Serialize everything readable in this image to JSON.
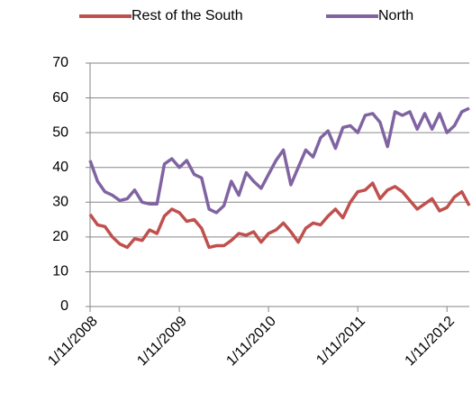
{
  "chart_data": {
    "type": "line",
    "categories": [
      "1/11/2008",
      null,
      null,
      null,
      null,
      null,
      null,
      null,
      null,
      null,
      null,
      null,
      "1/11/2009",
      null,
      null,
      null,
      null,
      null,
      null,
      null,
      null,
      null,
      null,
      null,
      "1/11/2010",
      null,
      null,
      null,
      null,
      null,
      null,
      null,
      null,
      null,
      null,
      null,
      "1/11/2011",
      null,
      null,
      null,
      null,
      null,
      null,
      null,
      null,
      null,
      null,
      null,
      "1/11/2012",
      null,
      null,
      null
    ],
    "series": [
      {
        "name": "Rest of the South",
        "color": "#c0504d",
        "values": [
          26.5,
          23.5,
          23,
          20,
          18,
          17,
          19.5,
          19,
          22,
          21,
          26,
          28,
          27,
          24.5,
          25,
          22.5,
          17,
          17.5,
          17.5,
          19,
          21,
          20.5,
          21.5,
          18.5,
          21,
          22,
          24,
          21.5,
          18.5,
          22.5,
          24,
          23.5,
          26,
          28,
          25.5,
          30,
          33,
          33.5,
          35.5,
          31,
          33.5,
          34.5,
          33,
          30.5,
          28,
          29.5,
          31,
          27.5,
          28.5,
          31.5,
          33,
          29
        ]
      },
      {
        "name": "North",
        "color": "#8064a2",
        "values": [
          42,
          36,
          33,
          32,
          30.5,
          31,
          33.5,
          30,
          29.5,
          29.5,
          41,
          42.5,
          40,
          42,
          38,
          37,
          28,
          27,
          29,
          36,
          32,
          38.5,
          36,
          34,
          38,
          42,
          45,
          35,
          40,
          45,
          43,
          48.5,
          50.5,
          45.5,
          51.5,
          52,
          50,
          55,
          55.5,
          53,
          46,
          56,
          55,
          56,
          51,
          55.5,
          51,
          55.5,
          50,
          52,
          56,
          57
        ]
      }
    ],
    "ylim": [
      0,
      70
    ],
    "yticks": [
      0,
      10,
      20,
      30,
      40,
      50,
      60,
      70
    ],
    "grid": true,
    "legend": "top"
  }
}
